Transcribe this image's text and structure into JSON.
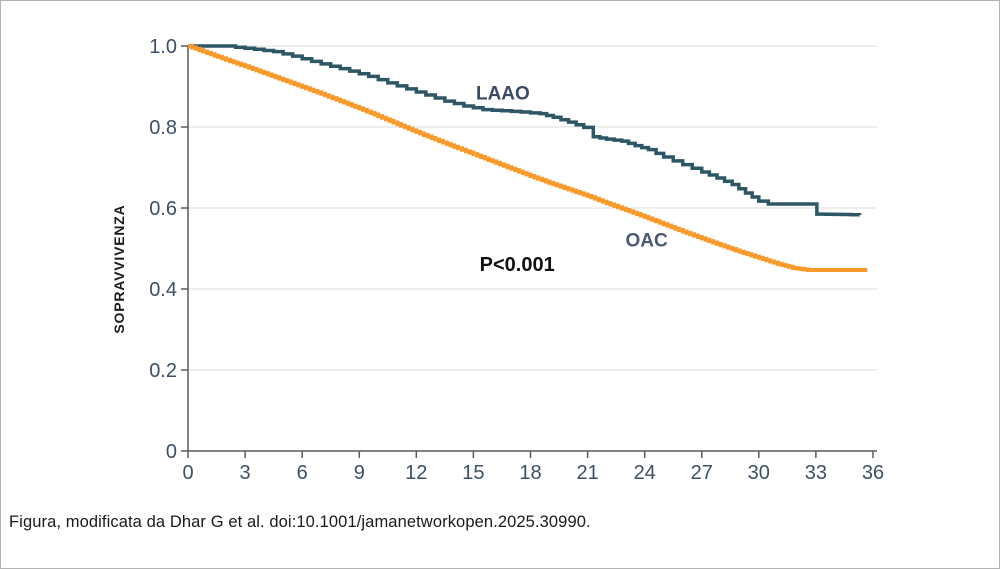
{
  "figure": {
    "caption": "Figura, modificata da Dhar G et al. doi:10.1001/jamanetworkopen.2025.30990."
  },
  "chart_data": {
    "type": "line",
    "subtype": "kaplan-meier-step",
    "title": "",
    "xlabel": "",
    "ylabel": "SOPRAVVIVENZA",
    "xlim": [
      0,
      36
    ],
    "ylim": [
      0,
      1.0
    ],
    "grid": "horizontal",
    "legend_position": "inline-labels",
    "x_ticks": [
      {
        "value": 0,
        "label": "0"
      },
      {
        "value": 3,
        "label": "3"
      },
      {
        "value": 6,
        "label": "6"
      },
      {
        "value": 9,
        "label": "9"
      },
      {
        "value": 12,
        "label": "12"
      },
      {
        "value": 15,
        "label": "15"
      },
      {
        "value": 18,
        "label": "18"
      },
      {
        "value": 21,
        "label": "21"
      },
      {
        "value": 24,
        "label": "24"
      },
      {
        "value": 27,
        "label": "27"
      },
      {
        "value": 30,
        "label": "30"
      },
      {
        "value": 33,
        "label": "33"
      },
      {
        "value": 36,
        "label": "36"
      }
    ],
    "y_ticks": [
      {
        "value": 1.0,
        "label": "1.0"
      },
      {
        "value": 0.8,
        "label": "0.8"
      },
      {
        "value": 0.6,
        "label": "0.6"
      },
      {
        "value": 0.4,
        "label": "0.4"
      },
      {
        "value": 0.2,
        "label": "0.2"
      },
      {
        "value": 0.0,
        "label": "0"
      }
    ],
    "series": [
      {
        "name": "LAAO",
        "color": "#2E5765",
        "stroke_width": 3.5,
        "label_color": "#3B4A63",
        "label_pos": {
          "x": 16.55,
          "y": 0.885
        },
        "step_resolution": 0.45,
        "points": [
          [
            0,
            1.0
          ],
          [
            2.2,
            1.0
          ],
          [
            2.5,
            0.997
          ],
          [
            3.5,
            0.992
          ],
          [
            4.5,
            0.986
          ],
          [
            5.5,
            0.975
          ],
          [
            6.5,
            0.962
          ],
          [
            7.5,
            0.95
          ],
          [
            8.5,
            0.938
          ],
          [
            9.5,
            0.925
          ],
          [
            10.5,
            0.909
          ],
          [
            11.5,
            0.894
          ],
          [
            12.5,
            0.879
          ],
          [
            13.5,
            0.864
          ],
          [
            14.5,
            0.852
          ],
          [
            15.5,
            0.843
          ],
          [
            16.5,
            0.84
          ],
          [
            17.5,
            0.837
          ],
          [
            18.5,
            0.833
          ],
          [
            19.2,
            0.824
          ],
          [
            20.0,
            0.812
          ],
          [
            20.8,
            0.799
          ],
          [
            21.3,
            0.776
          ],
          [
            22.0,
            0.77
          ],
          [
            22.8,
            0.765
          ],
          [
            23.5,
            0.754
          ],
          [
            24.2,
            0.744
          ],
          [
            25.0,
            0.726
          ],
          [
            26.0,
            0.707
          ],
          [
            27.0,
            0.689
          ],
          [
            27.8,
            0.674
          ],
          [
            28.6,
            0.658
          ],
          [
            29.3,
            0.637
          ],
          [
            30.0,
            0.617
          ],
          [
            30.5,
            0.61
          ],
          [
            32.8,
            0.61
          ],
          [
            33.05,
            0.585
          ],
          [
            35.3,
            0.583
          ]
        ]
      },
      {
        "name": "OAC",
        "color": "#F89B2C",
        "stroke_width": 4,
        "label_color": "#4C5975",
        "label_pos": {
          "x": 24.1,
          "y": 0.522
        },
        "step_resolution": 0.2,
        "points": [
          [
            0,
            1.0
          ],
          [
            1,
            0.983
          ],
          [
            2,
            0.966
          ],
          [
            3,
            0.95
          ],
          [
            4,
            0.933
          ],
          [
            5,
            0.916
          ],
          [
            6,
            0.899
          ],
          [
            7,
            0.882
          ],
          [
            8,
            0.864
          ],
          [
            9,
            0.846
          ],
          [
            10,
            0.827
          ],
          [
            11,
            0.807
          ],
          [
            12,
            0.788
          ],
          [
            13,
            0.769
          ],
          [
            14,
            0.751
          ],
          [
            15,
            0.733
          ],
          [
            16,
            0.715
          ],
          [
            17,
            0.697
          ],
          [
            18,
            0.679
          ],
          [
            19,
            0.662
          ],
          [
            20,
            0.646
          ],
          [
            21,
            0.63
          ],
          [
            22,
            0.612
          ],
          [
            23,
            0.595
          ],
          [
            24,
            0.578
          ],
          [
            25,
            0.56
          ],
          [
            26,
            0.542
          ],
          [
            27,
            0.525
          ],
          [
            28,
            0.508
          ],
          [
            29,
            0.492
          ],
          [
            30,
            0.477
          ],
          [
            31,
            0.462
          ],
          [
            31.8,
            0.452
          ],
          [
            32.6,
            0.447
          ],
          [
            35.7,
            0.447
          ]
        ]
      }
    ],
    "annotations": [
      {
        "text": "P<0.001",
        "x": 17.3,
        "y": 0.462
      }
    ]
  },
  "colors": {
    "background": "#ffffff",
    "panel_border": "#b2b2b2",
    "grid": "#dedede",
    "axis": "#5a5a5a",
    "tick_label": "#3D4F66",
    "laao": "#2E5765",
    "oac": "#F89B2C"
  }
}
